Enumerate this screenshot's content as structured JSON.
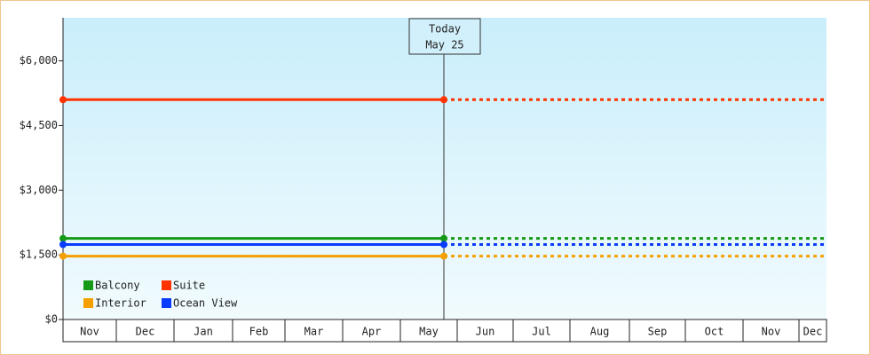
{
  "chart_data": {
    "type": "line",
    "categories": [
      "Nov",
      "Dec",
      "Jan",
      "Feb",
      "Mar",
      "Apr",
      "May",
      "Jun",
      "Jul",
      "Aug",
      "Sep",
      "Oct",
      "Nov",
      "Dec"
    ],
    "series": [
      {
        "name": "Balcony",
        "color": "#169916",
        "value": 1880
      },
      {
        "name": "Suite",
        "color": "#ff3300",
        "value": 5100
      },
      {
        "name": "Interior",
        "color": "#f5a000",
        "value": 1470
      },
      {
        "name": "Ocean View",
        "color": "#0a3cff",
        "value": 1740
      }
    ],
    "ylim": [
      0,
      7000
    ],
    "yticks": [
      {
        "value": 0,
        "label": "$0"
      },
      {
        "value": 1500,
        "label": "$1,500"
      },
      {
        "value": 3000,
        "label": "$3,000"
      },
      {
        "value": 4500,
        "label": "$4,500"
      },
      {
        "value": 6000,
        "label": "$6,000"
      }
    ],
    "annotation": [
      "Today",
      "May 25"
    ],
    "legend": "lower left"
  }
}
